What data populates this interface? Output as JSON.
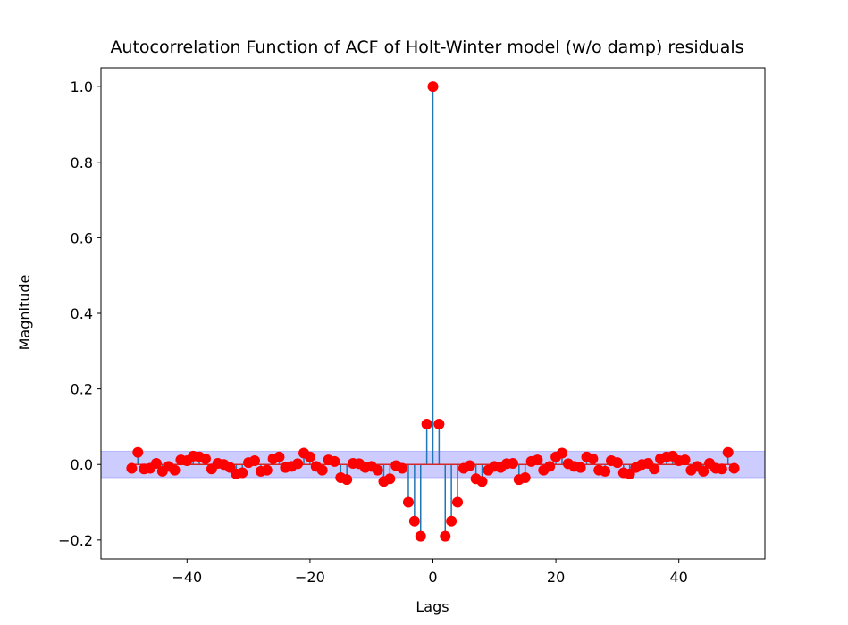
{
  "chart_data": {
    "type": "stem",
    "title": "Autocorrelation Function of ACF of Holt-Winter model (w/o damp) residuals",
    "xlabel": "Lags",
    "ylabel": "Magnitude",
    "xlim": [
      -54,
      54
    ],
    "ylim": [
      -0.25,
      1.05
    ],
    "xticks": [
      -40,
      -20,
      0,
      20,
      40
    ],
    "xtick_labels": [
      "−40",
      "−20",
      "0",
      "20",
      "40"
    ],
    "yticks": [
      -0.2,
      0.0,
      0.2,
      0.4,
      0.6,
      0.8,
      1.0
    ],
    "ytick_labels": [
      "−0.2",
      "0.0",
      "0.2",
      "0.4",
      "0.6",
      "0.8",
      "1.0"
    ],
    "confidence_band": [
      -0.035,
      0.035
    ],
    "colors": {
      "stem": "#1f77b4",
      "marker": "#ff0000",
      "baseline": "#d62728",
      "band": "#0000ff"
    },
    "grid": false,
    "lags": [
      -49,
      -48,
      -47,
      -46,
      -45,
      -44,
      -43,
      -42,
      -41,
      -40,
      -39,
      -38,
      -37,
      -36,
      -35,
      -34,
      -33,
      -32,
      -31,
      -30,
      -29,
      -28,
      -27,
      -26,
      -25,
      -24,
      -23,
      -22,
      -21,
      -20,
      -19,
      -18,
      -17,
      -16,
      -15,
      -14,
      -13,
      -12,
      -11,
      -10,
      -9,
      -8,
      -7,
      -6,
      -5,
      -4,
      -3,
      -2,
      -1,
      0,
      1,
      2,
      3,
      4,
      5,
      6,
      7,
      8,
      9,
      10,
      11,
      12,
      13,
      14,
      15,
      16,
      17,
      18,
      19,
      20,
      21,
      22,
      23,
      24,
      25,
      26,
      27,
      28,
      29,
      30,
      31,
      32,
      33,
      34,
      35,
      36,
      37,
      38,
      39,
      40,
      41,
      42,
      43,
      44,
      45,
      46,
      47,
      48,
      49
    ],
    "values": [
      -0.01,
      0.032,
      -0.012,
      -0.01,
      0.003,
      -0.018,
      -0.005,
      -0.015,
      0.012,
      0.01,
      0.022,
      0.02,
      0.015,
      -0.012,
      0.003,
      0.0,
      -0.008,
      -0.025,
      -0.022,
      0.005,
      0.01,
      -0.018,
      -0.015,
      0.015,
      0.02,
      -0.008,
      -0.005,
      0.002,
      0.03,
      0.02,
      -0.005,
      -0.015,
      0.012,
      0.008,
      -0.035,
      -0.04,
      0.003,
      0.002,
      -0.008,
      -0.005,
      -0.015,
      -0.045,
      -0.038,
      -0.003,
      -0.01,
      -0.1,
      -0.15,
      -0.19,
      0.107,
      1.0,
      0.107,
      -0.19,
      -0.15,
      -0.1,
      -0.01,
      -0.003,
      -0.038,
      -0.045,
      -0.015,
      -0.005,
      -0.008,
      0.002,
      0.003,
      -0.04,
      -0.035,
      0.008,
      0.012,
      -0.015,
      -0.005,
      0.02,
      0.03,
      0.002,
      -0.005,
      -0.008,
      0.02,
      0.015,
      -0.015,
      -0.018,
      0.01,
      0.005,
      -0.022,
      -0.025,
      -0.008,
      0.0,
      0.003,
      -0.012,
      0.015,
      0.02,
      0.022,
      0.01,
      0.012,
      -0.015,
      -0.005,
      -0.018,
      0.003,
      -0.01,
      -0.012,
      0.032,
      -0.01
    ]
  }
}
